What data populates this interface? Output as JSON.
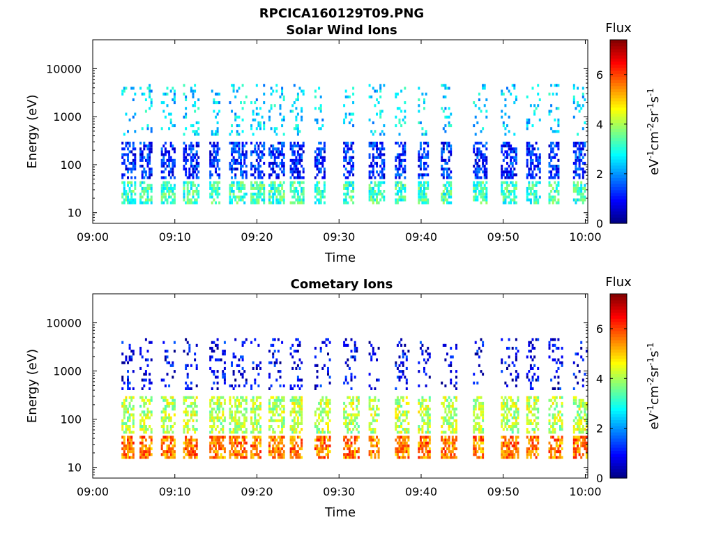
{
  "figure_title": "RPCICA160129T09.PNG",
  "colorbar": {
    "title": "Flux",
    "unit_parts": [
      "eV",
      "-1",
      "cm",
      "-2",
      "sr",
      "-1",
      "s",
      "-1"
    ],
    "ticks": [
      "0",
      "2",
      "4",
      "6"
    ],
    "range": [
      0,
      7.4
    ],
    "colormap": "jet"
  },
  "chart_data": [
    {
      "type": "heatmap",
      "title": "Solar Wind Ions",
      "xlabel": "Time",
      "ylabel": "Energy (eV)",
      "x_tick_labels": [
        "09:00",
        "09:10",
        "09:20",
        "09:30",
        "09:40",
        "09:50",
        "10:00"
      ],
      "xlim_minutes": [
        0,
        60.3
      ],
      "y_tick_labels": [
        "10",
        "100",
        "1000",
        "10000"
      ],
      "y_scale": "log",
      "ylim": [
        6,
        40000
      ],
      "pulse_start_minutes": [
        3.5,
        5.7,
        8.3,
        11.0,
        14.2,
        16.6,
        19.2,
        21.4,
        24.0,
        27.0,
        30.5,
        33.6,
        36.8,
        39.6,
        42.4,
        46.3,
        49.7,
        52.8,
        55.5,
        58.5
      ],
      "low_energy_band_eV": [
        15,
        40
      ],
      "mid_energy_band_eV": [
        50,
        300
      ],
      "high_energy_band_eV": [
        400,
        4500
      ],
      "flux_level_low_band": 3.2,
      "flux_level_mid_band": 1.2,
      "flux_level_high_band": 2.5
    },
    {
      "type": "heatmap",
      "title": "Cometary Ions",
      "xlabel": "Time",
      "ylabel": "Energy (eV)",
      "x_tick_labels": [
        "09:00",
        "09:10",
        "09:20",
        "09:30",
        "09:40",
        "09:50",
        "10:00"
      ],
      "xlim_minutes": [
        0,
        60.3
      ],
      "y_tick_labels": [
        "10",
        "100",
        "1000",
        "10000"
      ],
      "y_scale": "log",
      "ylim": [
        6,
        40000
      ],
      "pulse_start_minutes": [
        3.5,
        5.7,
        8.3,
        11.0,
        14.2,
        16.6,
        19.2,
        21.4,
        24.0,
        27.0,
        30.5,
        33.6,
        36.8,
        39.6,
        42.4,
        46.3,
        49.7,
        52.8,
        55.5,
        58.5
      ],
      "low_energy_band_eV": [
        15,
        45
      ],
      "mid_energy_band_eV": [
        50,
        300
      ],
      "high_energy_band_eV": [
        400,
        4500
      ],
      "flux_level_low_band": 5.6,
      "flux_level_mid_band": 4.1,
      "flux_level_high_band": 0.8
    }
  ]
}
